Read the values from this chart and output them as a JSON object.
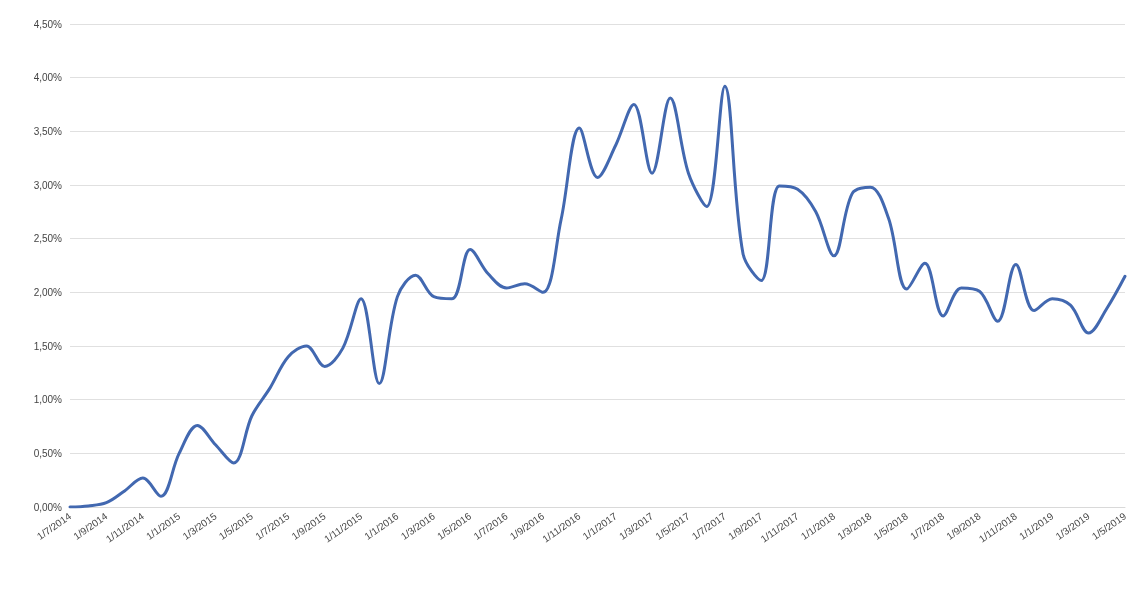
{
  "chart_data": {
    "type": "line",
    "categories": [
      "1/7/2014",
      null,
      "1/9/2014",
      null,
      "1/11/2014",
      null,
      "1/1/2015",
      null,
      "1/3/2015",
      null,
      "1/5/2015",
      null,
      "1/7/2015",
      null,
      "1/9/2015",
      null,
      "1/11/2015",
      null,
      "1/1/2016",
      null,
      "1/3/2016",
      null,
      "1/5/2016",
      null,
      "1/7/2016",
      null,
      "1/9/2016",
      null,
      "1/11/2016",
      null,
      "1/1/2017",
      null,
      "1/3/2017",
      null,
      "1/5/2017",
      null,
      "1/7/2017",
      null,
      "1/9/2017",
      null,
      "1/11/2017",
      null,
      "1/1/2018",
      null,
      "1/3/2018",
      null,
      "1/5/2018",
      null,
      "1/7/2018",
      null,
      "1/9/2018",
      null,
      "1/11/2018",
      null,
      "1/1/2019",
      null,
      "1/3/2019",
      null,
      "1/5/2019"
    ],
    "series": [
      {
        "color": "#4268b0",
        "values": [
          0.0,
          0.01,
          0.04,
          0.15,
          0.27,
          0.1,
          0.5,
          0.76,
          0.58,
          0.41,
          0.85,
          1.11,
          1.4,
          1.5,
          1.31,
          1.48,
          1.94,
          1.15,
          1.96,
          2.16,
          1.96,
          1.94,
          2.4,
          2.17,
          2.04,
          2.08,
          2.0,
          2.68,
          3.53,
          3.07,
          3.37,
          3.75,
          3.11,
          3.81,
          3.11,
          2.8,
          3.92,
          2.36,
          2.11,
          2.99,
          2.96,
          2.75,
          2.34,
          2.92,
          2.98,
          2.69,
          2.03,
          2.27,
          1.78,
          2.04,
          2.01,
          1.73,
          2.26,
          1.83,
          1.94,
          1.88,
          1.62,
          1.85,
          2.15
        ]
      }
    ],
    "ylim": [
      0,
      4.5
    ],
    "yticks": [
      {
        "value": 0,
        "label": "0,00%"
      },
      {
        "value": 0.5,
        "label": "0,50%"
      },
      {
        "value": 1,
        "label": "1,00%"
      },
      {
        "value": 1.5,
        "label": "1,50%"
      },
      {
        "value": 2,
        "label": "2,00%"
      },
      {
        "value": 2.5,
        "label": "2,50%"
      },
      {
        "value": 3,
        "label": "3,00%"
      },
      {
        "value": 3.5,
        "label": "3,50%"
      },
      {
        "value": 4,
        "label": "4,00%"
      },
      {
        "value": 4.5,
        "label": "4,50%"
      }
    ],
    "grid": "y",
    "marker": "none",
    "line_style": "solid"
  }
}
